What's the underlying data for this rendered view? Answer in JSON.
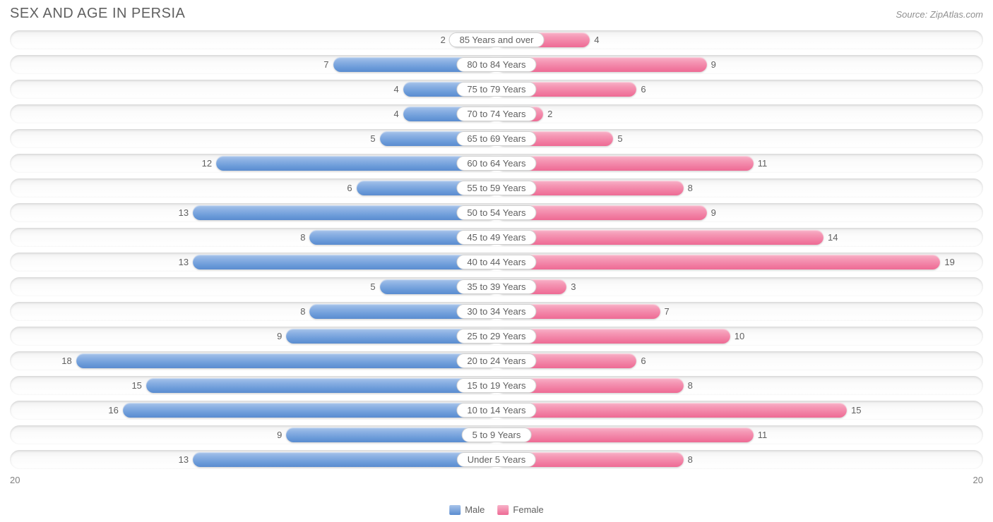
{
  "title": "SEX AND AGE IN PERSIA",
  "source": "Source: ZipAtlas.com",
  "chart": {
    "type": "population-pyramid",
    "male_color_top": "#a8c4ea",
    "male_color_bottom": "#5a8cd0",
    "female_color_top": "#f8b3c9",
    "female_color_bottom": "#ee6a94",
    "track_bg_top": "#f0f0f0",
    "track_bg_bottom": "#ffffff",
    "background_color": "#ffffff",
    "text_color": "#606060",
    "title_fontsize": 20,
    "label_fontsize": 13,
    "axis_max": 20,
    "axis_left_label": "20",
    "axis_right_label": "20",
    "legend": {
      "male": "Male",
      "female": "Female"
    },
    "rows": [
      {
        "label": "85 Years and over",
        "male": 2,
        "female": 4
      },
      {
        "label": "80 to 84 Years",
        "male": 7,
        "female": 9
      },
      {
        "label": "75 to 79 Years",
        "male": 4,
        "female": 6
      },
      {
        "label": "70 to 74 Years",
        "male": 4,
        "female": 2
      },
      {
        "label": "65 to 69 Years",
        "male": 5,
        "female": 5
      },
      {
        "label": "60 to 64 Years",
        "male": 12,
        "female": 11
      },
      {
        "label": "55 to 59 Years",
        "male": 6,
        "female": 8
      },
      {
        "label": "50 to 54 Years",
        "male": 13,
        "female": 9
      },
      {
        "label": "45 to 49 Years",
        "male": 8,
        "female": 14
      },
      {
        "label": "40 to 44 Years",
        "male": 13,
        "female": 19
      },
      {
        "label": "35 to 39 Years",
        "male": 5,
        "female": 3
      },
      {
        "label": "30 to 34 Years",
        "male": 8,
        "female": 7
      },
      {
        "label": "25 to 29 Years",
        "male": 9,
        "female": 10
      },
      {
        "label": "20 to 24 Years",
        "male": 18,
        "female": 6
      },
      {
        "label": "15 to 19 Years",
        "male": 15,
        "female": 8
      },
      {
        "label": "10 to 14 Years",
        "male": 16,
        "female": 15
      },
      {
        "label": "5 to 9 Years",
        "male": 9,
        "female": 11
      },
      {
        "label": "Under 5 Years",
        "male": 13,
        "female": 8
      }
    ]
  }
}
